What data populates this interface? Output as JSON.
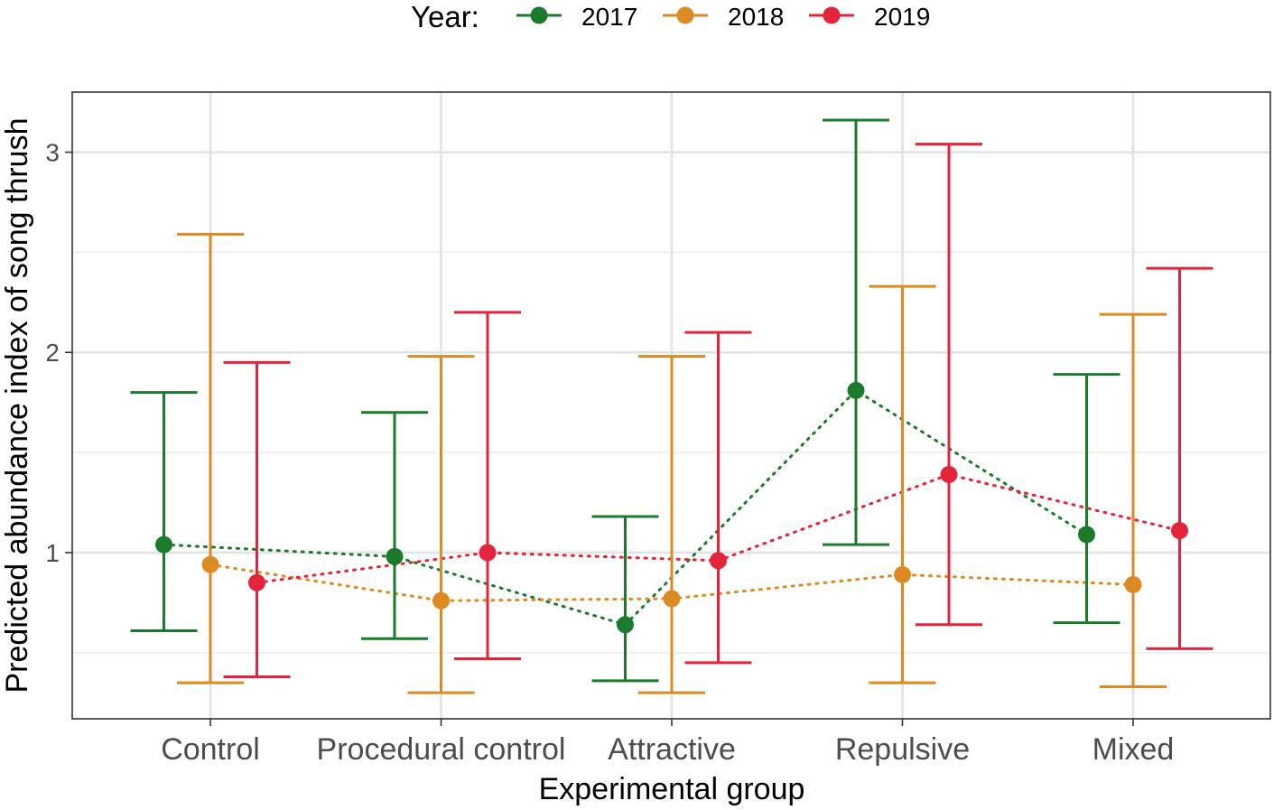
{
  "chart_data": {
    "type": "scatter",
    "style": "point-range with dotted connecting lines",
    "xlabel": "Experimental group",
    "ylabel": "Predicted abundance index of song thrush",
    "categories": [
      "Control",
      "Procedural control",
      "Attractive",
      "Repulsive",
      "Mixed"
    ],
    "ylim": [
      0.17,
      3.3
    ],
    "yticks": [
      1,
      2,
      3
    ],
    "grid": true,
    "legend": {
      "title": "Year:",
      "position": "top"
    },
    "series": [
      {
        "name": "2017",
        "color": "#1b7a2b",
        "values": [
          1.04,
          0.98,
          0.64,
          1.81,
          1.09
        ],
        "lower": [
          0.61,
          0.57,
          0.36,
          1.04,
          0.65
        ],
        "upper": [
          1.8,
          1.7,
          1.18,
          3.16,
          1.89
        ]
      },
      {
        "name": "2018",
        "color": "#de8a22",
        "values": [
          0.94,
          0.76,
          0.77,
          0.89,
          0.84
        ],
        "lower": [
          0.35,
          0.3,
          0.3,
          0.35,
          0.33
        ],
        "upper": [
          2.59,
          1.98,
          1.98,
          2.33,
          2.19
        ]
      },
      {
        "name": "2019",
        "color": "#e3243b",
        "values": [
          0.85,
          1.0,
          0.96,
          1.39,
          1.11
        ],
        "lower": [
          0.38,
          0.47,
          0.45,
          0.64,
          0.52
        ],
        "upper": [
          1.95,
          2.2,
          2.1,
          3.04,
          2.42
        ]
      }
    ]
  }
}
